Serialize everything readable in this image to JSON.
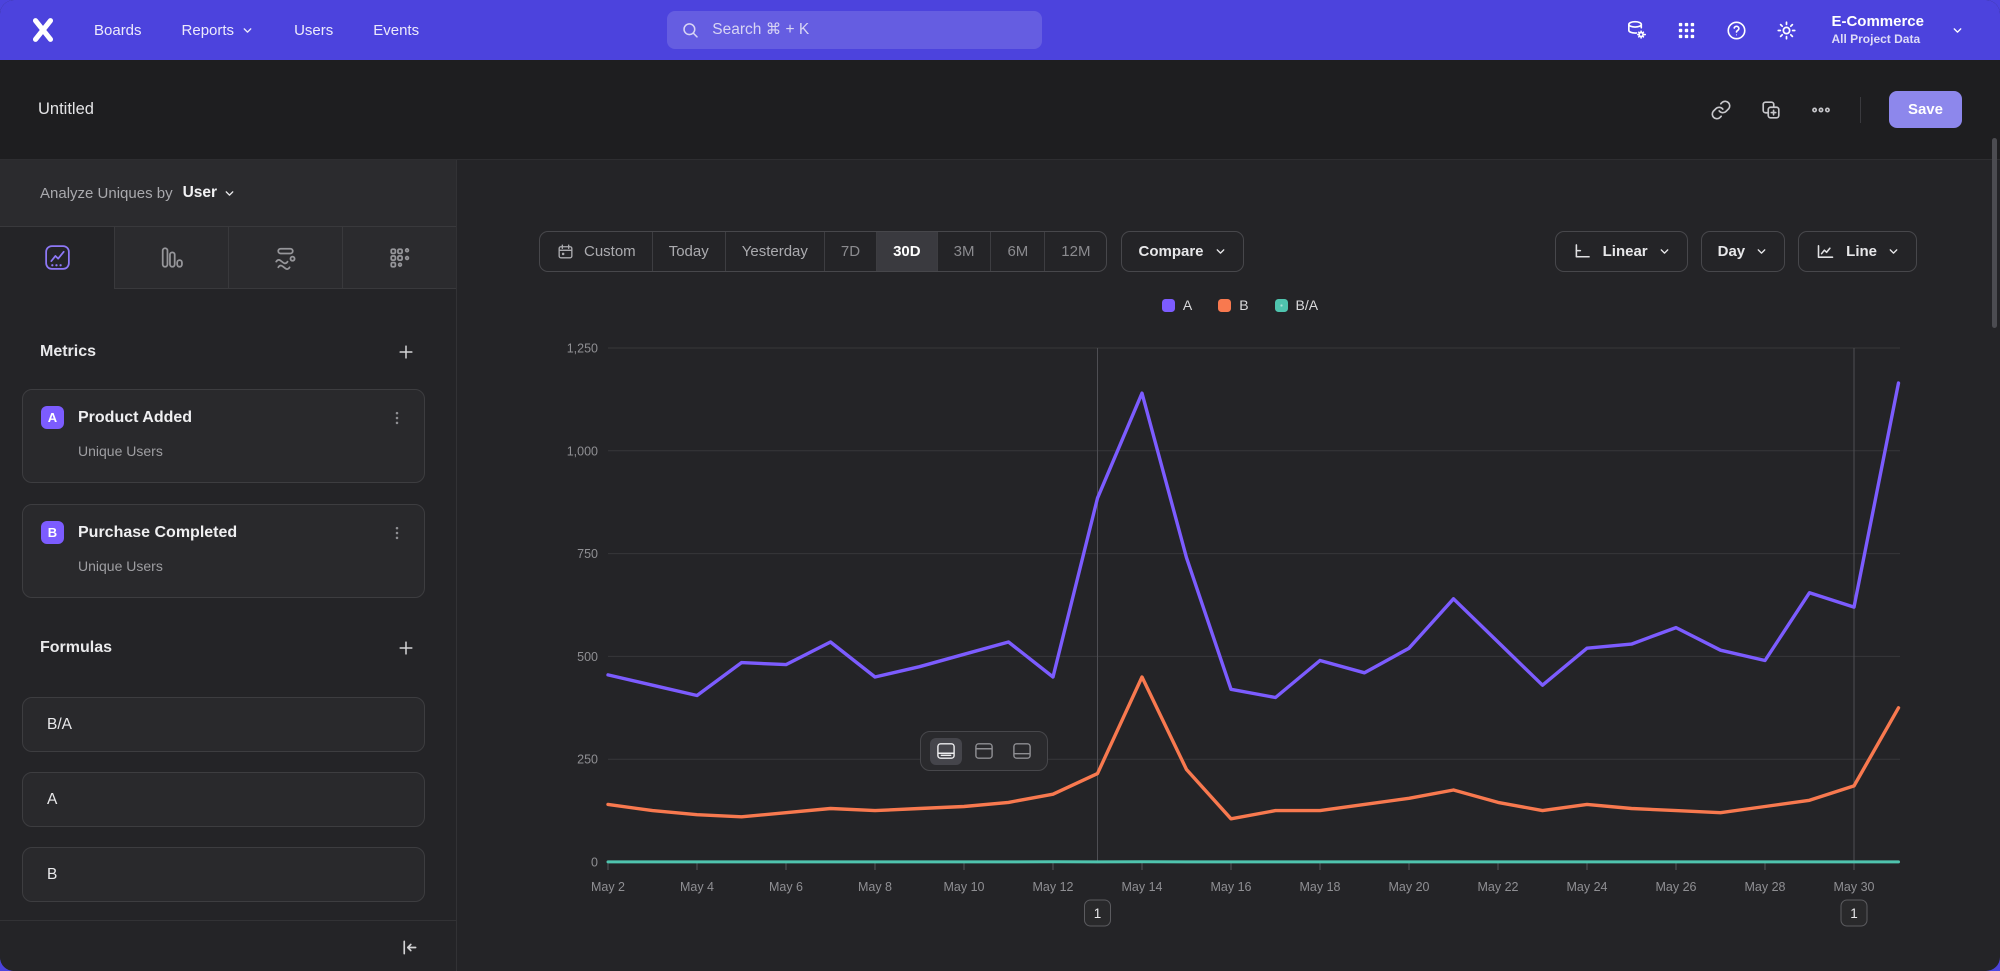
{
  "nav": {
    "menu": [
      {
        "label": "Boards",
        "has_dropdown": false
      },
      {
        "label": "Reports",
        "has_dropdown": true
      },
      {
        "label": "Users",
        "has_dropdown": false
      },
      {
        "label": "Events",
        "has_dropdown": false
      }
    ],
    "search_placeholder": "Search ⌘ + K",
    "project": {
      "name": "E-Commerce",
      "scope": "All Project Data"
    }
  },
  "title_bar": {
    "title": "Untitled",
    "save_label": "Save"
  },
  "sidebar": {
    "analyze": {
      "prefix": "Analyze Uniques by",
      "value": "User"
    },
    "metrics": {
      "heading": "Metrics",
      "items": [
        {
          "badge": "A",
          "name": "Product Added",
          "subtitle": "Unique Users"
        },
        {
          "badge": "B",
          "name": "Purchase Completed",
          "subtitle": "Unique Users"
        }
      ]
    },
    "formulas": {
      "heading": "Formulas",
      "items": [
        "B/A",
        "A",
        "B"
      ]
    }
  },
  "toolbar": {
    "date_ranges": [
      "Custom",
      "Today",
      "Yesterday",
      "7D",
      "30D",
      "3M",
      "6M",
      "12M"
    ],
    "active_range": "30D",
    "icon_range": "Custom",
    "muted_ranges": [
      "7D",
      "3M",
      "6M",
      "12M"
    ],
    "compare_label": "Compare",
    "scale_label": "Linear",
    "interval_label": "Day",
    "chart_type_label": "Line"
  },
  "annotations": [
    {
      "label": "1",
      "date": "May 13"
    },
    {
      "label": "1",
      "date": "May 30"
    }
  ],
  "colors": {
    "nav_purple": "#4C43DD",
    "save_button": "#8D87EC",
    "series_a": "#7C5CFF",
    "series_b": "#F8794F",
    "series_ratio": "#4FC4AE"
  },
  "chart_data": {
    "type": "line",
    "title": "",
    "xlabel": "",
    "ylabel": "",
    "ylim": [
      0,
      1250
    ],
    "yticks": [
      0,
      250,
      500,
      750,
      1000,
      1250
    ],
    "grid": true,
    "legend_position": "top-center",
    "x": [
      "May 2",
      "May 3",
      "May 4",
      "May 5",
      "May 6",
      "May 7",
      "May 8",
      "May 9",
      "May 10",
      "May 11",
      "May 12",
      "May 13",
      "May 14",
      "May 15",
      "May 16",
      "May 17",
      "May 18",
      "May 19",
      "May 20",
      "May 21",
      "May 22",
      "May 23",
      "May 24",
      "May 25",
      "May 26",
      "May 27",
      "May 28",
      "May 29",
      "May 30",
      "May 31"
    ],
    "x_tick_labels": [
      "May 2",
      "May 4",
      "May 6",
      "May 8",
      "May 10",
      "May 12",
      "May 14",
      "May 16",
      "May 18",
      "May 20",
      "May 22",
      "May 24",
      "May 26",
      "May 28",
      "May 30"
    ],
    "series": [
      {
        "name": "A",
        "color": "#7C5CFF",
        "dotted_swatch": false,
        "values": [
          455,
          430,
          405,
          485,
          480,
          535,
          450,
          475,
          505,
          535,
          450,
          885,
          1140,
          740,
          420,
          400,
          490,
          460,
          520,
          640,
          535,
          430,
          520,
          530,
          570,
          515,
          490,
          655,
          620,
          1165
        ]
      },
      {
        "name": "B",
        "color": "#F8794F",
        "dotted_swatch": false,
        "values": [
          140,
          125,
          115,
          110,
          120,
          130,
          125,
          130,
          135,
          145,
          165,
          215,
          450,
          225,
          105,
          125,
          125,
          140,
          155,
          175,
          145,
          125,
          140,
          130,
          125,
          120,
          135,
          150,
          185,
          375
        ]
      },
      {
        "name": "B/A",
        "color": "#4FC4AE",
        "dotted_swatch": true,
        "values": [
          0.31,
          0.29,
          0.28,
          0.23,
          0.25,
          0.24,
          0.28,
          0.27,
          0.27,
          0.27,
          0.37,
          0.24,
          0.39,
          0.3,
          0.25,
          0.31,
          0.26,
          0.3,
          0.3,
          0.27,
          0.27,
          0.29,
          0.27,
          0.25,
          0.22,
          0.23,
          0.28,
          0.23,
          0.3,
          0.32
        ]
      }
    ]
  }
}
